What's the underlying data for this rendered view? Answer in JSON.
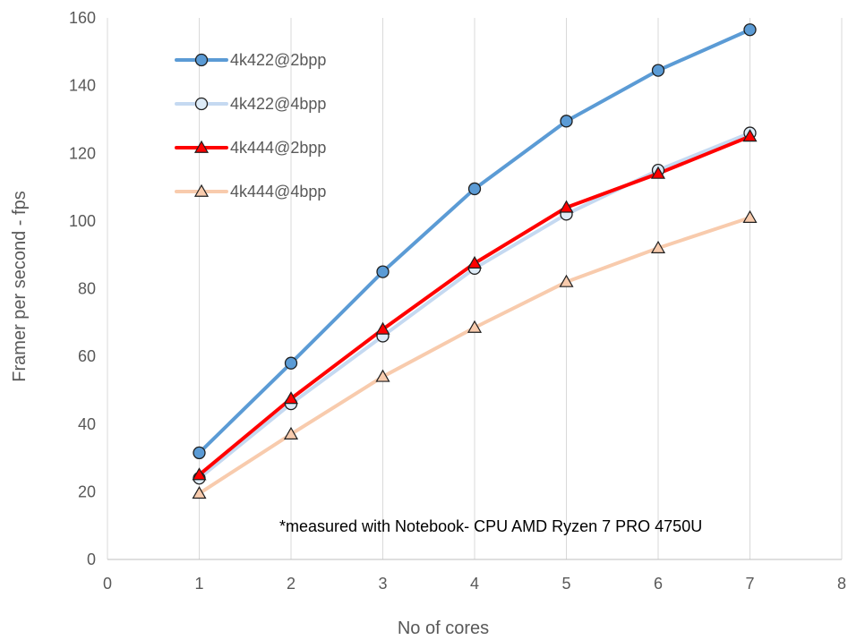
{
  "chart_data": {
    "type": "line",
    "xlabel": "No of cores",
    "ylabel": "Framer per second - fps",
    "xlim": [
      0,
      8
    ],
    "ylim": [
      0,
      160
    ],
    "x_ticks": [
      0,
      1,
      2,
      3,
      4,
      5,
      6,
      7,
      8
    ],
    "y_ticks": [
      0,
      20,
      40,
      60,
      80,
      100,
      120,
      140,
      160
    ],
    "grid": "vertical",
    "legend_position": "top-left",
    "x": [
      1,
      2,
      3,
      4,
      5,
      6,
      7
    ],
    "series": [
      {
        "name": "4k422@2bpp",
        "values": [
          31.5,
          58,
          85,
          109.5,
          129.5,
          144.5,
          156.5
        ],
        "color": "#5B9BD5",
        "marker": "circle",
        "marker_fill": "#5B9BD5"
      },
      {
        "name": "4k422@4bpp",
        "values": [
          24,
          46,
          66,
          86,
          102,
          115,
          126
        ],
        "color": "#C5D9F1",
        "marker": "circle",
        "marker_fill": "#DDEBF7"
      },
      {
        "name": "4k444@2bpp",
        "values": [
          25,
          47.5,
          68,
          87.5,
          104,
          114,
          125
        ],
        "color": "#FF0000",
        "marker": "triangle",
        "marker_fill": "#FF0000"
      },
      {
        "name": "4k444@4bpp",
        "values": [
          19.5,
          37,
          54,
          68.5,
          82,
          92,
          101
        ],
        "color": "#F8CBAD",
        "marker": "triangle",
        "marker_fill": "#F8CBAD"
      }
    ],
    "annotation": "*measured with Notebook- CPU AMD Ryzen 7 PRO 4750U"
  }
}
